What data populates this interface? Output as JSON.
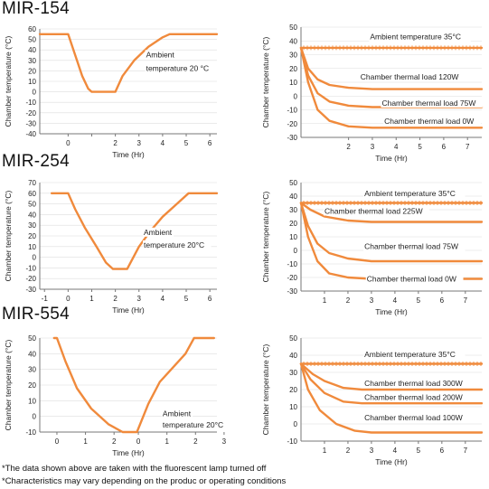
{
  "colors": {
    "curve": "#f08a3c",
    "axis": "#777777",
    "grid": "#dddddd",
    "text": "#222222"
  },
  "rows": [
    {
      "model": "MIR-154"
    },
    {
      "model": "MIR-254"
    },
    {
      "model": "MIR-554"
    }
  ],
  "notes": [
    "*The data shown above are taken with the fluorescent lamp turned off",
    "*Characteristics may vary depending on the produc or operating conditions"
  ],
  "chart_data": [
    {
      "id": "mir154-left",
      "type": "line",
      "ylabel": "Chamber temperature (°C)",
      "xlabel": "Time (Hr)",
      "yticks": [
        60,
        50,
        40,
        30,
        20,
        10,
        0,
        -10,
        -20,
        -30,
        -40
      ],
      "xticks": [
        "0",
        "",
        "2",
        "3",
        "4",
        "5",
        "6"
      ],
      "ylim": [
        -40,
        60
      ],
      "series": [
        {
          "values": [
            [
              -1.2,
              55
            ],
            [
              0,
              55
            ],
            [
              0.3,
              35
            ],
            [
              0.6,
              15
            ],
            [
              0.85,
              3
            ],
            [
              1.0,
              0
            ],
            [
              1.15,
              0
            ],
            [
              1.8,
              0
            ],
            [
              2.0,
              0
            ],
            [
              2.3,
              15
            ],
            [
              2.8,
              30
            ],
            [
              3.4,
              43
            ],
            [
              4.0,
              52
            ],
            [
              4.3,
              55
            ],
            [
              6.3,
              55
            ]
          ]
        }
      ],
      "annotations": [
        {
          "text": "Ambient",
          "x": 3.3,
          "y": 33
        },
        {
          "text": "temperature 20 °C",
          "x": 3.3,
          "y": 20
        }
      ]
    },
    {
      "id": "mir154-right",
      "type": "line",
      "ylabel": "Chamber temperature (°C)",
      "xlabel": "Time (Hr)",
      "yticks": [
        50,
        40,
        30,
        20,
        10,
        0,
        -10,
        -20,
        -30
      ],
      "xticks": [
        "2",
        "3",
        "4",
        "5",
        "6",
        "7"
      ],
      "ylim": [
        -30,
        50
      ],
      "series": [
        {
          "name": "Ambient temperature 35°C",
          "values": [
            [
              0,
              35
            ],
            [
              7.6,
              35
            ]
          ]
        },
        {
          "name": "Chamber thermal load 120W",
          "values": [
            [
              0,
              35
            ],
            [
              0.3,
              20
            ],
            [
              0.7,
              12
            ],
            [
              1.2,
              8
            ],
            [
              2,
              6
            ],
            [
              3,
              5
            ],
            [
              7.6,
              5
            ]
          ]
        },
        {
          "name": "Chamber thermal load 75W",
          "values": [
            [
              0,
              35
            ],
            [
              0.3,
              15
            ],
            [
              0.7,
              2
            ],
            [
              1.2,
              -4
            ],
            [
              2,
              -7
            ],
            [
              3,
              -8
            ],
            [
              7.6,
              -8
            ]
          ]
        },
        {
          "name": "Chamber thermal load 0W",
          "values": [
            [
              0,
              35
            ],
            [
              0.3,
              10
            ],
            [
              0.7,
              -10
            ],
            [
              1.2,
              -18
            ],
            [
              2,
              -22
            ],
            [
              3,
              -23
            ],
            [
              7.6,
              -23
            ]
          ]
        }
      ],
      "annotations": [
        {
          "text": "Ambient temperature 35°C",
          "x": 2.9,
          "y": 41
        },
        {
          "text": "Chamber thermal load 120W",
          "x": 2.5,
          "y": 12
        },
        {
          "text": "Chamber thermal load 75W",
          "x": 3.4,
          "y": -7
        },
        {
          "text": "Chamber thermal load 0W",
          "x": 3.5,
          "y": -20
        }
      ]
    },
    {
      "id": "mir254-left",
      "type": "line",
      "ylabel": "Chamber temperature (°C)",
      "xlabel": "Time (Hr)",
      "yticks": [
        70,
        60,
        50,
        40,
        30,
        20,
        10,
        0,
        -10,
        -20,
        -30
      ],
      "xticks": [
        "-1",
        "0",
        "1",
        "2",
        "3",
        "4",
        "5",
        "6"
      ],
      "ylim": [
        -30,
        70
      ],
      "series": [
        {
          "values": [
            [
              -0.7,
              60
            ],
            [
              0,
              60
            ],
            [
              0.3,
              45
            ],
            [
              0.7,
              28
            ],
            [
              1.2,
              10
            ],
            [
              1.6,
              -5
            ],
            [
              1.9,
              -11
            ],
            [
              2.5,
              -11
            ],
            [
              3.0,
              10
            ],
            [
              3.5,
              25
            ],
            [
              4.0,
              38
            ],
            [
              4.6,
              50
            ],
            [
              5.1,
              60
            ],
            [
              6.3,
              60
            ]
          ]
        }
      ],
      "annotations": [
        {
          "text": "Ambient",
          "x": 3.2,
          "y": 21
        },
        {
          "text": "temperature 20°C",
          "x": 3.2,
          "y": 9
        }
      ]
    },
    {
      "id": "mir254-right",
      "type": "line",
      "ylabel": "Chamber temperature (°C)",
      "xlabel": "Time (Hr)",
      "yticks": [
        50,
        40,
        30,
        20,
        10,
        0,
        -10,
        -20,
        -30
      ],
      "xticks": [
        "1",
        "2",
        "3",
        "4",
        "5",
        "6",
        "7"
      ],
      "ylim": [
        -30,
        50
      ],
      "series": [
        {
          "name": "Ambient temperature 35°C",
          "values": [
            [
              0,
              35
            ],
            [
              7.7,
              35
            ]
          ]
        },
        {
          "name": "Chamber thermal load 225W",
          "values": [
            [
              0,
              35
            ],
            [
              0.4,
              30
            ],
            [
              1,
              25
            ],
            [
              2,
              22
            ],
            [
              3,
              21
            ],
            [
              7.7,
              21
            ]
          ]
        },
        {
          "name": "Chamber thermal load 75W",
          "values": [
            [
              0,
              35
            ],
            [
              0.3,
              18
            ],
            [
              0.7,
              5
            ],
            [
              1.2,
              -2
            ],
            [
              2,
              -6
            ],
            [
              3,
              -8
            ],
            [
              7.7,
              -8
            ]
          ]
        },
        {
          "name": "Chamber thermal load 0W",
          "values": [
            [
              0,
              35
            ],
            [
              0.3,
              10
            ],
            [
              0.7,
              -8
            ],
            [
              1.2,
              -17
            ],
            [
              2,
              -20
            ],
            [
              3,
              -21
            ],
            [
              7.7,
              -21
            ]
          ]
        }
      ],
      "annotations": [
        {
          "text": "Ambient temperature 35°C",
          "x": 2.7,
          "y": 40
        },
        {
          "text": "Chamber thermal load 225W",
          "x": 1.0,
          "y": 27
        },
        {
          "text": "Chamber thermal load 75W",
          "x": 2.7,
          "y": 1
        },
        {
          "text": "Chamber thermal load 0W",
          "x": 2.8,
          "y": -23
        }
      ]
    },
    {
      "id": "mir554-left",
      "type": "line",
      "ylabel": "Chamber temperature (°C)",
      "xlabel": "Time (Hr)",
      "yticks": [
        50,
        40,
        30,
        20,
        10,
        0,
        -10
      ],
      "xticks": [
        "0",
        "1",
        "2",
        "0",
        "1",
        "2",
        "3"
      ],
      "ylim": [
        -10,
        50
      ],
      "series": [
        {
          "values": [
            [
              -0.1,
              50
            ],
            [
              0,
              50
            ],
            [
              0.3,
              35
            ],
            [
              0.7,
              18
            ],
            [
              1.2,
              5
            ],
            [
              1.8,
              -5
            ],
            [
              2.3,
              -10
            ],
            [
              2.8,
              -10
            ],
            [
              3.2,
              8
            ],
            [
              3.6,
              22
            ],
            [
              4.0,
              30
            ],
            [
              4.5,
              40
            ],
            [
              4.8,
              50
            ],
            [
              5.5,
              50
            ]
          ]
        }
      ],
      "annotations": [
        {
          "text": "Ambient",
          "x": 3.7,
          "y": 0
        },
        {
          "text": "temperature 20°C",
          "x": 3.7,
          "y": -7
        }
      ]
    },
    {
      "id": "mir554-right",
      "type": "line",
      "ylabel": "Chamber temperature (°C)",
      "xlabel": "Time (Hr)",
      "yticks": [
        50,
        40,
        30,
        20,
        10,
        0,
        -10
      ],
      "xticks": [
        "1",
        "2",
        "3",
        "4",
        "5",
        "6",
        "7"
      ],
      "ylim": [
        -10,
        50
      ],
      "series": [
        {
          "name": "Ambient temperature 35°C",
          "values": [
            [
              0,
              35
            ],
            [
              7.7,
              35
            ]
          ]
        },
        {
          "name": "Chamber thermal load 300W",
          "values": [
            [
              0,
              35
            ],
            [
              0.5,
              29
            ],
            [
              1,
              25
            ],
            [
              1.8,
              21
            ],
            [
              2.6,
              20
            ],
            [
              7.7,
              20
            ]
          ]
        },
        {
          "name": "Chamber thermal load 200W",
          "values": [
            [
              0,
              35
            ],
            [
              0.4,
              26
            ],
            [
              1,
              18
            ],
            [
              1.8,
              13
            ],
            [
              2.6,
              12
            ],
            [
              7.7,
              12
            ]
          ]
        },
        {
          "name": "Chamber thermal load 100W",
          "values": [
            [
              0,
              35
            ],
            [
              0.3,
              20
            ],
            [
              0.8,
              8
            ],
            [
              1.5,
              0
            ],
            [
              2.3,
              -4
            ],
            [
              3.0,
              -5
            ],
            [
              7.7,
              -5
            ]
          ]
        }
      ],
      "annotations": [
        {
          "text": "Ambient temperature 35°C",
          "x": 2.7,
          "y": 39
        },
        {
          "text": "Chamber thermal load 300W",
          "x": 2.7,
          "y": 22
        },
        {
          "text": "Chamber thermal load 200W",
          "x": 2.7,
          "y": 14
        },
        {
          "text": "Chamber thermal load 100W",
          "x": 2.7,
          "y": 2
        }
      ]
    }
  ]
}
